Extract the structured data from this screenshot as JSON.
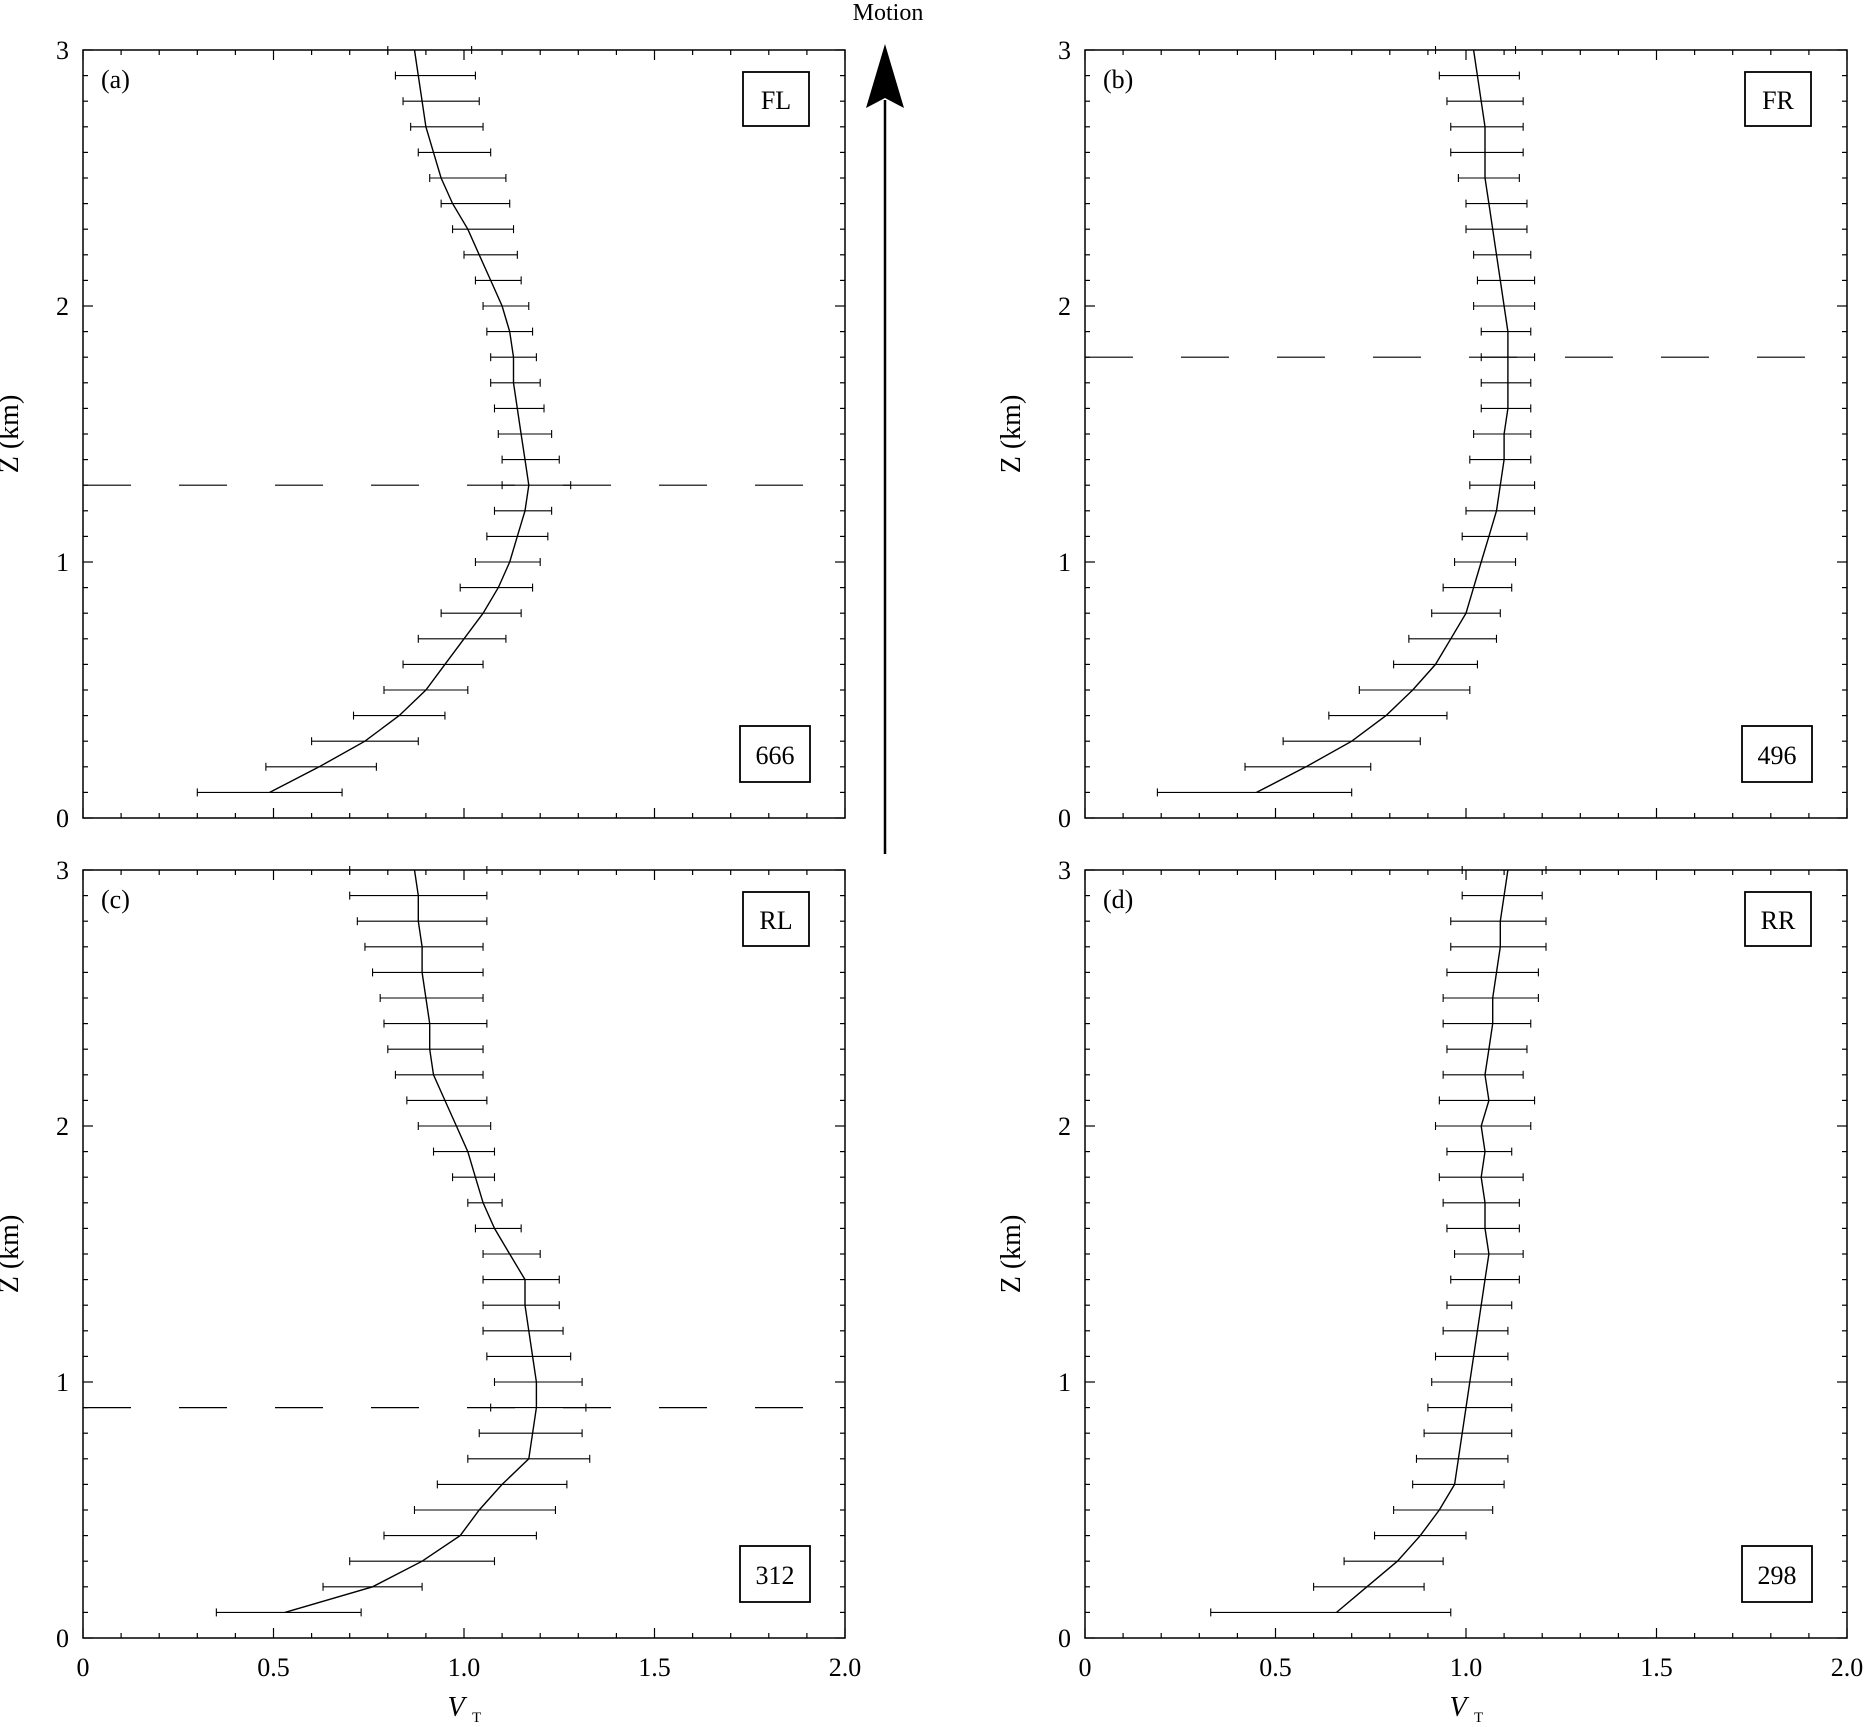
{
  "header": {
    "motion_label": "Motion"
  },
  "axes": {
    "x_label": "V",
    "x_label_sub": "T",
    "y_label": "Z (km)",
    "x_ticks": [
      "0",
      "0.5",
      "1.0",
      "1.5",
      "2.0"
    ],
    "y_ticks": [
      "0",
      "1",
      "2",
      "3"
    ]
  },
  "chart_data": [
    {
      "type": "line",
      "panel": "(a)",
      "quadrant": "FL",
      "count": "666",
      "xlabel": "V_T",
      "ylabel": "Z (km)",
      "xlim": [
        0,
        2.0
      ],
      "ylim": [
        0,
        3
      ],
      "dashed_level": 1.3,
      "z": [
        0.1,
        0.2,
        0.3,
        0.4,
        0.5,
        0.6,
        0.7,
        0.8,
        0.9,
        1.0,
        1.1,
        1.2,
        1.3,
        1.4,
        1.5,
        1.6,
        1.7,
        1.8,
        1.9,
        2.0,
        2.1,
        2.2,
        2.3,
        2.4,
        2.5,
        2.6,
        2.7,
        2.8,
        2.9,
        3.0
      ],
      "vt": [
        0.49,
        0.62,
        0.74,
        0.83,
        0.9,
        0.95,
        1.0,
        1.05,
        1.09,
        1.12,
        1.14,
        1.16,
        1.17,
        1.16,
        1.15,
        1.14,
        1.13,
        1.13,
        1.12,
        1.1,
        1.07,
        1.04,
        1.01,
        0.97,
        0.94,
        0.92,
        0.9,
        0.89,
        0.88,
        0.87
      ],
      "err_lo": [
        0.3,
        0.48,
        0.6,
        0.71,
        0.79,
        0.84,
        0.88,
        0.94,
        0.99,
        1.03,
        1.06,
        1.08,
        1.1,
        1.1,
        1.09,
        1.08,
        1.07,
        1.07,
        1.06,
        1.05,
        1.03,
        1.0,
        0.97,
        0.94,
        0.91,
        0.88,
        0.86,
        0.84,
        0.82,
        0.8
      ],
      "err_hi": [
        0.68,
        0.77,
        0.88,
        0.95,
        1.01,
        1.05,
        1.11,
        1.15,
        1.18,
        1.2,
        1.22,
        1.23,
        1.28,
        1.25,
        1.23,
        1.21,
        1.2,
        1.19,
        1.18,
        1.17,
        1.15,
        1.14,
        1.13,
        1.12,
        1.11,
        1.07,
        1.05,
        1.04,
        1.03,
        1.02
      ]
    },
    {
      "type": "line",
      "panel": "(b)",
      "quadrant": "FR",
      "count": "496",
      "xlabel": "V_T",
      "ylabel": "Z (km)",
      "xlim": [
        0,
        2.0
      ],
      "ylim": [
        0,
        3
      ],
      "dashed_level": 1.8,
      "z": [
        0.1,
        0.2,
        0.3,
        0.4,
        0.5,
        0.6,
        0.7,
        0.8,
        0.9,
        1.0,
        1.1,
        1.2,
        1.3,
        1.4,
        1.5,
        1.6,
        1.7,
        1.8,
        1.9,
        2.0,
        2.1,
        2.2,
        2.3,
        2.4,
        2.5,
        2.6,
        2.7,
        2.8,
        2.9,
        3.0
      ],
      "vt": [
        0.45,
        0.58,
        0.7,
        0.79,
        0.86,
        0.92,
        0.96,
        1.0,
        1.02,
        1.04,
        1.06,
        1.08,
        1.09,
        1.1,
        1.1,
        1.11,
        1.11,
        1.11,
        1.11,
        1.1,
        1.09,
        1.08,
        1.07,
        1.06,
        1.05,
        1.05,
        1.05,
        1.04,
        1.03,
        1.02
      ],
      "err_lo": [
        0.19,
        0.42,
        0.52,
        0.64,
        0.72,
        0.81,
        0.85,
        0.91,
        0.94,
        0.97,
        0.99,
        1.0,
        1.01,
        1.01,
        1.02,
        1.04,
        1.04,
        1.04,
        1.04,
        1.02,
        1.03,
        1.02,
        1.0,
        1.0,
        0.98,
        0.96,
        0.96,
        0.95,
        0.93,
        0.92
      ],
      "err_hi": [
        0.7,
        0.75,
        0.88,
        0.95,
        1.01,
        1.03,
        1.08,
        1.09,
        1.12,
        1.13,
        1.16,
        1.18,
        1.18,
        1.17,
        1.17,
        1.17,
        1.17,
        1.18,
        1.17,
        1.18,
        1.18,
        1.17,
        1.16,
        1.16,
        1.14,
        1.15,
        1.15,
        1.15,
        1.14,
        1.13
      ]
    },
    {
      "type": "line",
      "panel": "(c)",
      "quadrant": "RL",
      "count": "312",
      "xlabel": "V_T",
      "ylabel": "Z (km)",
      "xlim": [
        0,
        2.0
      ],
      "ylim": [
        0,
        3
      ],
      "dashed_level": 0.9,
      "z": [
        0.1,
        0.2,
        0.3,
        0.4,
        0.5,
        0.6,
        0.7,
        0.8,
        0.9,
        1.0,
        1.1,
        1.2,
        1.3,
        1.4,
        1.5,
        1.6,
        1.7,
        1.8,
        1.9,
        2.0,
        2.1,
        2.2,
        2.3,
        2.4,
        2.5,
        2.6,
        2.7,
        2.8,
        2.9,
        3.0
      ],
      "vt": [
        0.53,
        0.76,
        0.89,
        0.99,
        1.04,
        1.1,
        1.17,
        1.18,
        1.19,
        1.19,
        1.18,
        1.17,
        1.16,
        1.16,
        1.12,
        1.08,
        1.05,
        1.03,
        1.01,
        0.98,
        0.95,
        0.92,
        0.91,
        0.91,
        0.9,
        0.89,
        0.89,
        0.88,
        0.88,
        0.87
      ],
      "err_lo": [
        0.35,
        0.63,
        0.7,
        0.79,
        0.87,
        0.93,
        1.01,
        1.04,
        1.07,
        1.08,
        1.06,
        1.05,
        1.05,
        1.05,
        1.05,
        1.03,
        1.01,
        0.97,
        0.92,
        0.88,
        0.85,
        0.82,
        0.8,
        0.79,
        0.78,
        0.76,
        0.74,
        0.72,
        0.7,
        0.7
      ],
      "err_hi": [
        0.73,
        0.89,
        1.08,
        1.19,
        1.24,
        1.27,
        1.33,
        1.31,
        1.32,
        1.31,
        1.28,
        1.26,
        1.25,
        1.25,
        1.2,
        1.15,
        1.1,
        1.08,
        1.08,
        1.07,
        1.06,
        1.05,
        1.05,
        1.06,
        1.05,
        1.05,
        1.05,
        1.06,
        1.06,
        1.06
      ]
    },
    {
      "type": "line",
      "panel": "(d)",
      "quadrant": "RR",
      "count": "298",
      "xlabel": "V_T",
      "ylabel": "Z (km)",
      "xlim": [
        0,
        2.0
      ],
      "ylim": [
        0,
        3
      ],
      "z": [
        0.1,
        0.2,
        0.3,
        0.4,
        0.5,
        0.6,
        0.7,
        0.8,
        0.9,
        1.0,
        1.1,
        1.2,
        1.3,
        1.4,
        1.5,
        1.6,
        1.7,
        1.8,
        1.9,
        2.0,
        2.1,
        2.2,
        2.3,
        2.4,
        2.5,
        2.6,
        2.7,
        2.8,
        2.9,
        3.0
      ],
      "vt": [
        0.66,
        0.74,
        0.82,
        0.88,
        0.93,
        0.97,
        0.98,
        0.99,
        1.0,
        1.01,
        1.02,
        1.03,
        1.04,
        1.05,
        1.06,
        1.05,
        1.05,
        1.04,
        1.05,
        1.04,
        1.06,
        1.05,
        1.06,
        1.07,
        1.07,
        1.08,
        1.09,
        1.09,
        1.1,
        1.11
      ],
      "err_lo": [
        0.33,
        0.6,
        0.68,
        0.76,
        0.81,
        0.86,
        0.87,
        0.89,
        0.9,
        0.91,
        0.92,
        0.94,
        0.95,
        0.96,
        0.97,
        0.95,
        0.94,
        0.93,
        0.95,
        0.92,
        0.93,
        0.94,
        0.95,
        0.94,
        0.94,
        0.95,
        0.96,
        0.96,
        0.99,
        0.99
      ],
      "err_hi": [
        0.96,
        0.89,
        0.94,
        1.0,
        1.07,
        1.1,
        1.11,
        1.12,
        1.12,
        1.12,
        1.11,
        1.11,
        1.12,
        1.14,
        1.15,
        1.14,
        1.14,
        1.15,
        1.12,
        1.17,
        1.18,
        1.15,
        1.16,
        1.17,
        1.19,
        1.19,
        1.21,
        1.21,
        1.2,
        1.21
      ]
    }
  ]
}
